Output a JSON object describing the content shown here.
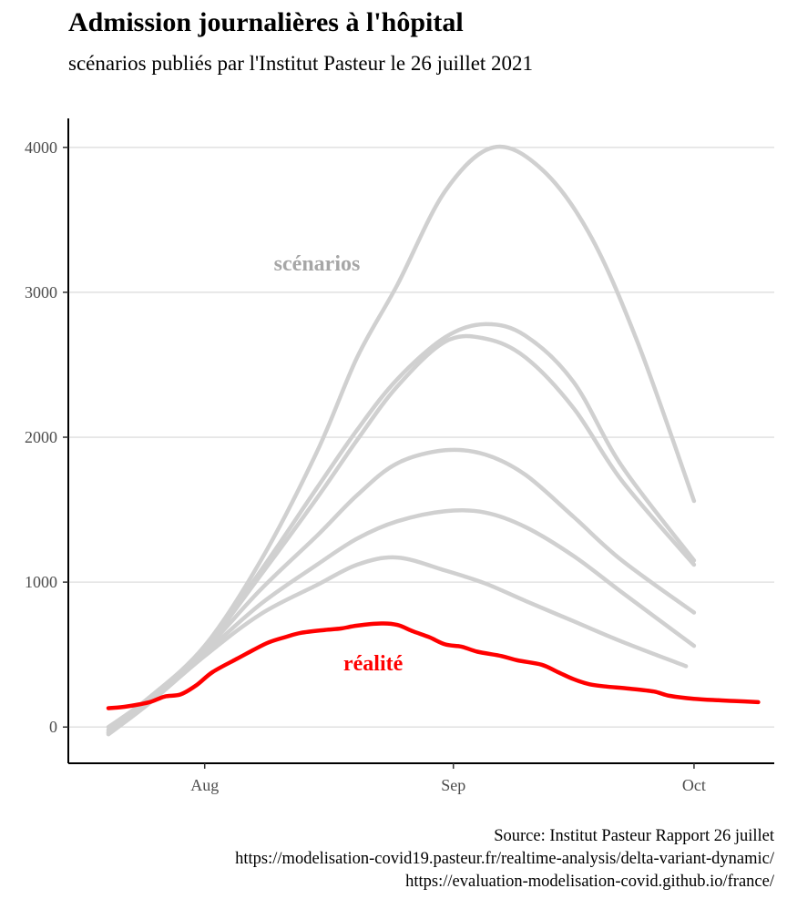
{
  "title": "Admission journalières à l'hôpital",
  "subtitle": "scénarios publiés par l'Institut Pasteur le 26 juillet 2021",
  "caption": {
    "line1": "Source: Institut Pasteur Rapport 26 juillet",
    "line2": "https://modelisation-covid19.pasteur.fr/realtime-analysis/delta-variant-dynamic/",
    "line3": "https://evaluation-modelisation-covid.github.io/france/"
  },
  "colors": {
    "scenario": "#d0d0d0",
    "reality": "#ff0000",
    "grid": "#e3e3e3",
    "annotation_scenario": "#a6a6a6"
  },
  "chart_data": {
    "type": "line",
    "x_type": "date",
    "xlim": [
      "2021-07-15",
      "2021-10-11"
    ],
    "ylim": [
      -250,
      4200
    ],
    "y_ticks": [
      0,
      1000,
      2000,
      3000,
      4000
    ],
    "y_tick_labels": [
      "0",
      "1000",
      "2000",
      "3000",
      "4000"
    ],
    "x_ticks": [
      "2021-08-01",
      "2021-09-01",
      "2021-10-01"
    ],
    "x_tick_labels": [
      "Aug",
      "Sep",
      "Oct"
    ],
    "grid": "horizontal",
    "annotations": [
      {
        "text": "scénarios",
        "x": "2021-08-15",
        "y": 3150,
        "color": "#a6a6a6"
      },
      {
        "text": "réalité",
        "x": "2021-08-22",
        "y": 390,
        "color": "#ff0000"
      }
    ],
    "series": [
      {
        "kind": "scenario",
        "points": [
          [
            "2021-07-20",
            0
          ],
          [
            "2021-07-25",
            200
          ],
          [
            "2021-08-01",
            560
          ],
          [
            "2021-08-08",
            1150
          ],
          [
            "2021-08-15",
            1900
          ],
          [
            "2021-08-20",
            2550
          ],
          [
            "2021-08-25",
            3050
          ],
          [
            "2021-08-31",
            3700
          ],
          [
            "2021-09-06",
            4000
          ],
          [
            "2021-09-12",
            3850
          ],
          [
            "2021-09-18",
            3400
          ],
          [
            "2021-09-24",
            2650
          ],
          [
            "2021-10-01",
            1560
          ]
        ]
      },
      {
        "kind": "scenario",
        "points": [
          [
            "2021-07-20",
            -20
          ],
          [
            "2021-07-25",
            190
          ],
          [
            "2021-08-01",
            550
          ],
          [
            "2021-08-08",
            1080
          ],
          [
            "2021-08-15",
            1650
          ],
          [
            "2021-08-20",
            2050
          ],
          [
            "2021-08-25",
            2400
          ],
          [
            "2021-08-31",
            2690
          ],
          [
            "2021-09-05",
            2780
          ],
          [
            "2021-09-10",
            2700
          ],
          [
            "2021-09-16",
            2380
          ],
          [
            "2021-09-22",
            1800
          ],
          [
            "2021-10-01",
            1150
          ]
        ]
      },
      {
        "kind": "scenario",
        "points": [
          [
            "2021-07-20",
            -30
          ],
          [
            "2021-07-25",
            190
          ],
          [
            "2021-08-01",
            545
          ],
          [
            "2021-08-08",
            1050
          ],
          [
            "2021-08-15",
            1580
          ],
          [
            "2021-08-20",
            1980
          ],
          [
            "2021-08-25",
            2350
          ],
          [
            "2021-08-31",
            2660
          ],
          [
            "2021-09-05",
            2680
          ],
          [
            "2021-09-10",
            2550
          ],
          [
            "2021-09-16",
            2200
          ],
          [
            "2021-09-22",
            1700
          ],
          [
            "2021-10-01",
            1120
          ]
        ]
      },
      {
        "kind": "scenario",
        "points": [
          [
            "2021-07-20",
            -40
          ],
          [
            "2021-07-25",
            180
          ],
          [
            "2021-08-01",
            530
          ],
          [
            "2021-08-08",
            950
          ],
          [
            "2021-08-15",
            1320
          ],
          [
            "2021-08-20",
            1600
          ],
          [
            "2021-08-25",
            1820
          ],
          [
            "2021-08-31",
            1910
          ],
          [
            "2021-09-05",
            1880
          ],
          [
            "2021-09-10",
            1740
          ],
          [
            "2021-09-16",
            1450
          ],
          [
            "2021-09-22",
            1150
          ],
          [
            "2021-10-01",
            790
          ]
        ]
      },
      {
        "kind": "scenario",
        "points": [
          [
            "2021-07-20",
            -40
          ],
          [
            "2021-07-25",
            170
          ],
          [
            "2021-08-01",
            510
          ],
          [
            "2021-08-08",
            850
          ],
          [
            "2021-08-15",
            1120
          ],
          [
            "2021-08-20",
            1300
          ],
          [
            "2021-08-25",
            1420
          ],
          [
            "2021-08-31",
            1490
          ],
          [
            "2021-09-05",
            1480
          ],
          [
            "2021-09-10",
            1380
          ],
          [
            "2021-09-16",
            1180
          ],
          [
            "2021-09-22",
            930
          ],
          [
            "2021-10-01",
            560
          ]
        ]
      },
      {
        "kind": "scenario",
        "points": [
          [
            "2021-07-20",
            -50
          ],
          [
            "2021-07-25",
            160
          ],
          [
            "2021-08-01",
            490
          ],
          [
            "2021-08-08",
            780
          ],
          [
            "2021-08-15",
            980
          ],
          [
            "2021-08-20",
            1120
          ],
          [
            "2021-08-25",
            1170
          ],
          [
            "2021-08-31",
            1080
          ],
          [
            "2021-09-05",
            990
          ],
          [
            "2021-09-10",
            870
          ],
          [
            "2021-09-16",
            730
          ],
          [
            "2021-09-22",
            590
          ],
          [
            "2021-09-30",
            420
          ]
        ]
      },
      {
        "kind": "reality",
        "points": [
          [
            "2021-07-20",
            130
          ],
          [
            "2021-07-22",
            140
          ],
          [
            "2021-07-25",
            170
          ],
          [
            "2021-07-27",
            210
          ],
          [
            "2021-07-29",
            225
          ],
          [
            "2021-07-31",
            290
          ],
          [
            "2021-08-02",
            380
          ],
          [
            "2021-08-05",
            470
          ],
          [
            "2021-08-07",
            530
          ],
          [
            "2021-08-09",
            585
          ],
          [
            "2021-08-11",
            620
          ],
          [
            "2021-08-13",
            650
          ],
          [
            "2021-08-16",
            670
          ],
          [
            "2021-08-18",
            680
          ],
          [
            "2021-08-20",
            700
          ],
          [
            "2021-08-23",
            715
          ],
          [
            "2021-08-25",
            705
          ],
          [
            "2021-08-27",
            660
          ],
          [
            "2021-08-29",
            620
          ],
          [
            "2021-08-31",
            570
          ],
          [
            "2021-09-02",
            555
          ],
          [
            "2021-09-04",
            520
          ],
          [
            "2021-09-07",
            490
          ],
          [
            "2021-09-09",
            460
          ],
          [
            "2021-09-12",
            430
          ],
          [
            "2021-09-14",
            380
          ],
          [
            "2021-09-16",
            330
          ],
          [
            "2021-09-18",
            295
          ],
          [
            "2021-09-20",
            280
          ],
          [
            "2021-09-23",
            265
          ],
          [
            "2021-09-26",
            245
          ],
          [
            "2021-09-28",
            215
          ],
          [
            "2021-10-01",
            195
          ],
          [
            "2021-10-04",
            185
          ],
          [
            "2021-10-06",
            180
          ],
          [
            "2021-10-09",
            172
          ]
        ]
      }
    ]
  }
}
